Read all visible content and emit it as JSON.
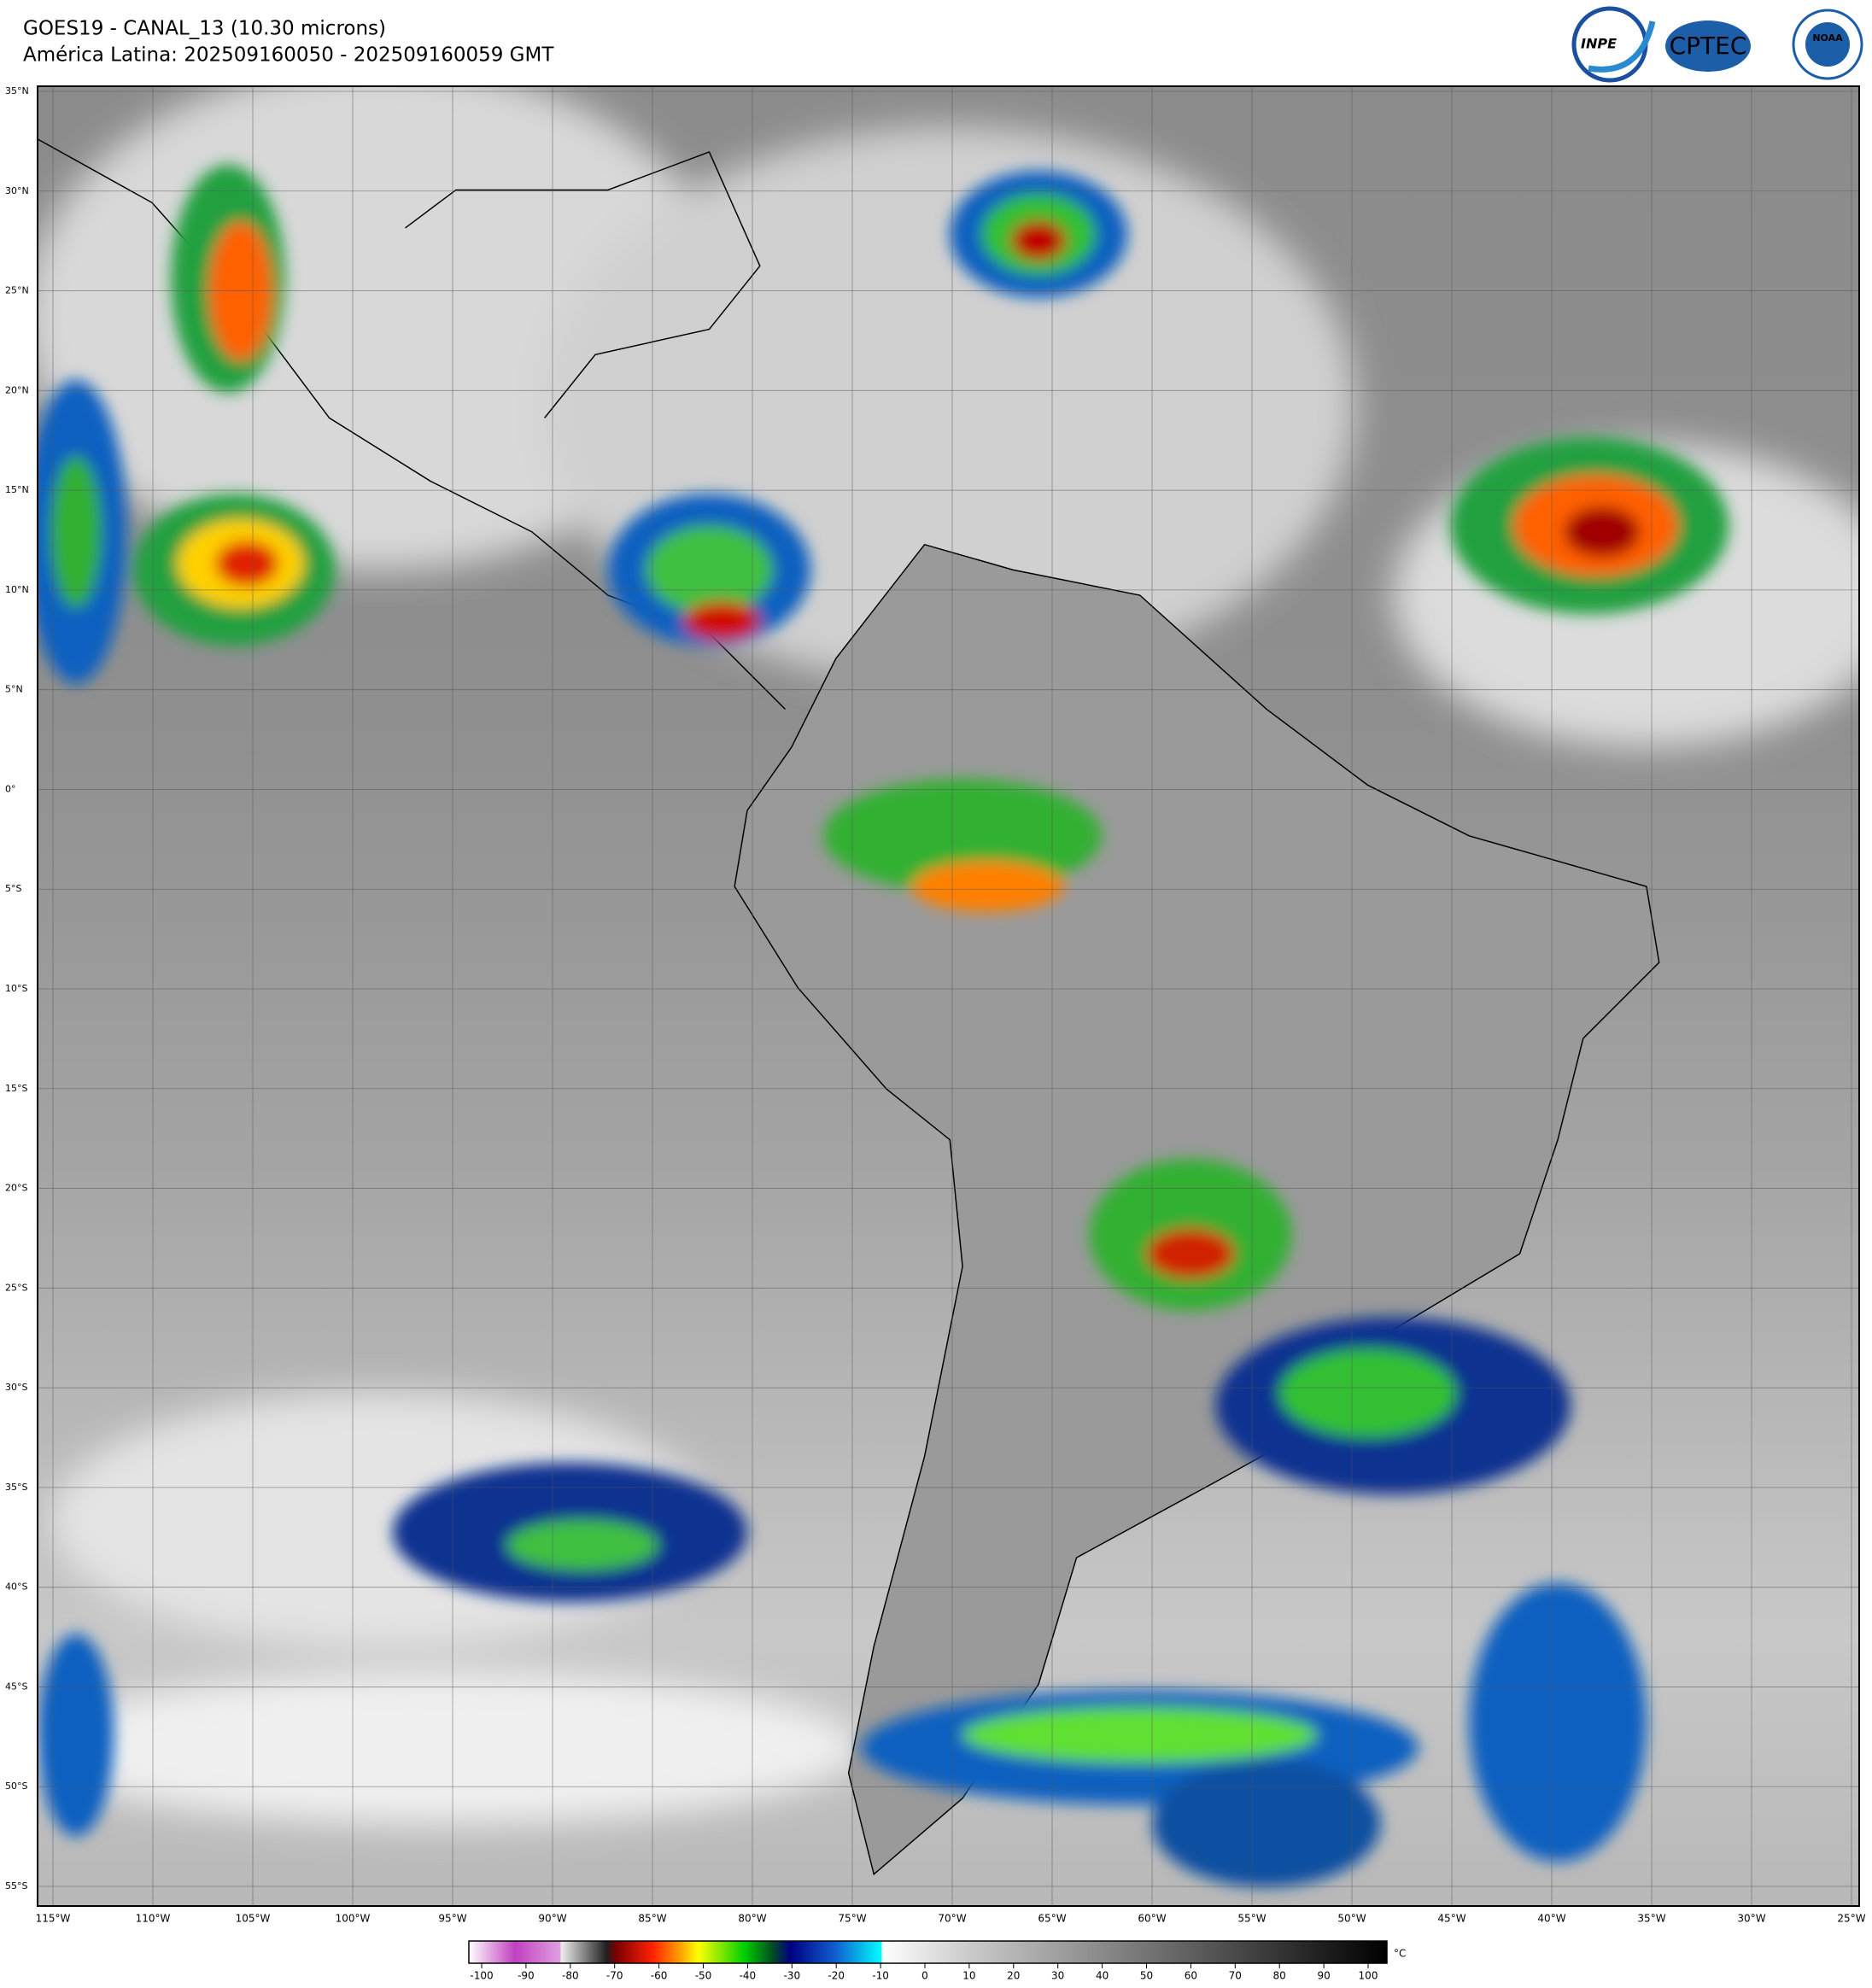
{
  "header": {
    "title": "GOES19 - CANAL_13 (10.30 microns)",
    "subtitle": "América Latina: 202509160050 - 202509160059 GMT"
  },
  "logos": [
    "INPE",
    "CPTEC",
    "NOAA"
  ],
  "map": {
    "lat_labels": [
      "35°N",
      "30°N",
      "25°N",
      "20°N",
      "15°N",
      "10°N",
      "5°N",
      "0°",
      "5°S",
      "10°S",
      "15°S",
      "20°S",
      "25°S",
      "30°S",
      "35°S",
      "40°S",
      "45°S",
      "50°S",
      "55°S"
    ],
    "lon_labels": [
      "115°W",
      "110°W",
      "105°W",
      "100°W",
      "95°W",
      "90°W",
      "85°W",
      "80°W",
      "75°W",
      "70°W",
      "65°W",
      "60°W",
      "55°W",
      "50°W",
      "45°W",
      "40°W",
      "35°W",
      "30°W",
      "25°W"
    ]
  },
  "colorbar": {
    "ticks": [
      -100,
      -90,
      -80,
      -70,
      -60,
      -50,
      -40,
      -30,
      -20,
      -10,
      0,
      10,
      20,
      30,
      40,
      50,
      60,
      70,
      80,
      90,
      100
    ],
    "unit": "°C"
  }
}
